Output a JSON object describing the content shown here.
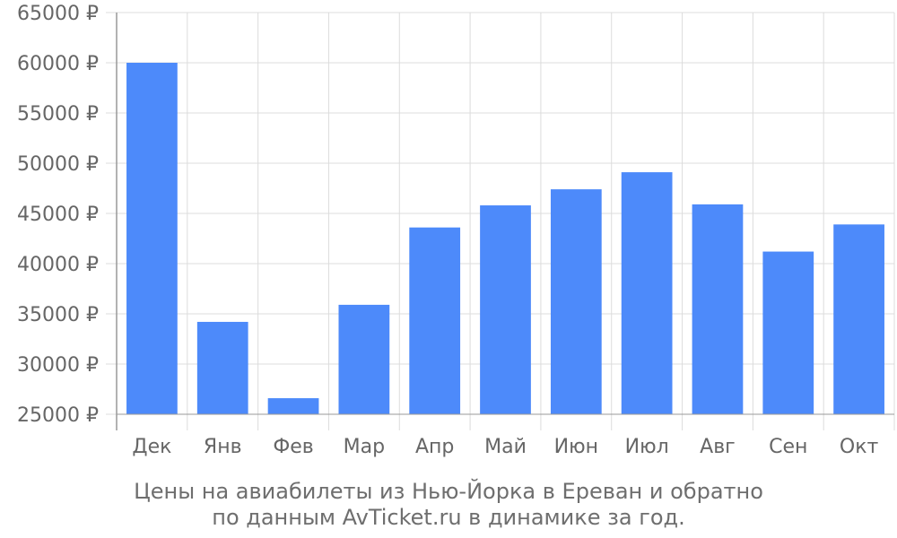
{
  "chart_data": {
    "type": "bar",
    "categories": [
      "Дек",
      "Янв",
      "Фев",
      "Мар",
      "Апр",
      "Май",
      "Июн",
      "Июл",
      "Авг",
      "Сен",
      "Окт"
    ],
    "values": [
      60000,
      34200,
      26600,
      35900,
      43600,
      45800,
      47400,
      49100,
      45900,
      41200,
      43900
    ],
    "ylim": [
      25000,
      65000
    ],
    "yticks": [
      25000,
      30000,
      35000,
      40000,
      45000,
      50000,
      55000,
      60000,
      65000
    ],
    "ytick_labels": [
      "25000 ₽",
      "30000 ₽",
      "35000 ₽",
      "40000 ₽",
      "45000 ₽",
      "50000 ₽",
      "55000 ₽",
      "60000 ₽",
      "65000 ₽"
    ],
    "grid": true,
    "bar_color": "#4d8afa",
    "grid_color": "#dcdcdc",
    "axis_color": "#999999"
  },
  "caption": {
    "line1": "Цены на авиабилеты из Нью-Йорка в Ереван и обратно",
    "line2": "по данным AvTicket.ru в динамике за год."
  }
}
